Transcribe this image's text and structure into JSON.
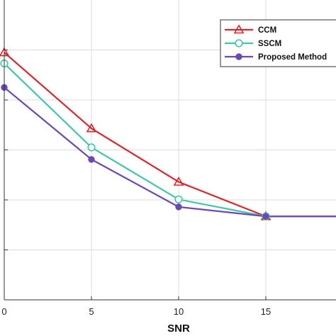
{
  "chart_data": {
    "type": "line",
    "title": "",
    "xlabel": "SNR",
    "ylabel": "",
    "xlim": [
      0,
      20
    ],
    "ylim": [
      0,
      6
    ],
    "x_ticks": [
      0,
      5,
      10,
      15,
      20
    ],
    "x_tick_labels": [
      "0",
      "5",
      "10",
      "15",
      ""
    ],
    "y_ticks": [
      1,
      2,
      3,
      4,
      5
    ],
    "grid": true,
    "legend_position": "top-right",
    "x": [
      0,
      5,
      10,
      15,
      20
    ],
    "series": [
      {
        "name": "CCM",
        "color": "#d9262c",
        "marker": "triangle",
        "values": [
          4.95,
          3.43,
          2.36,
          1.67,
          1.67
        ]
      },
      {
        "name": "SSCM",
        "color": "#3ec8a3",
        "marker": "circle-open",
        "values": [
          4.73,
          3.05,
          2.01,
          1.67,
          1.67
        ]
      },
      {
        "name": "Proposed Method",
        "color": "#6a49b5",
        "marker": "circle-filled",
        "values": [
          4.25,
          2.81,
          1.86,
          1.67,
          1.67
        ]
      }
    ]
  }
}
